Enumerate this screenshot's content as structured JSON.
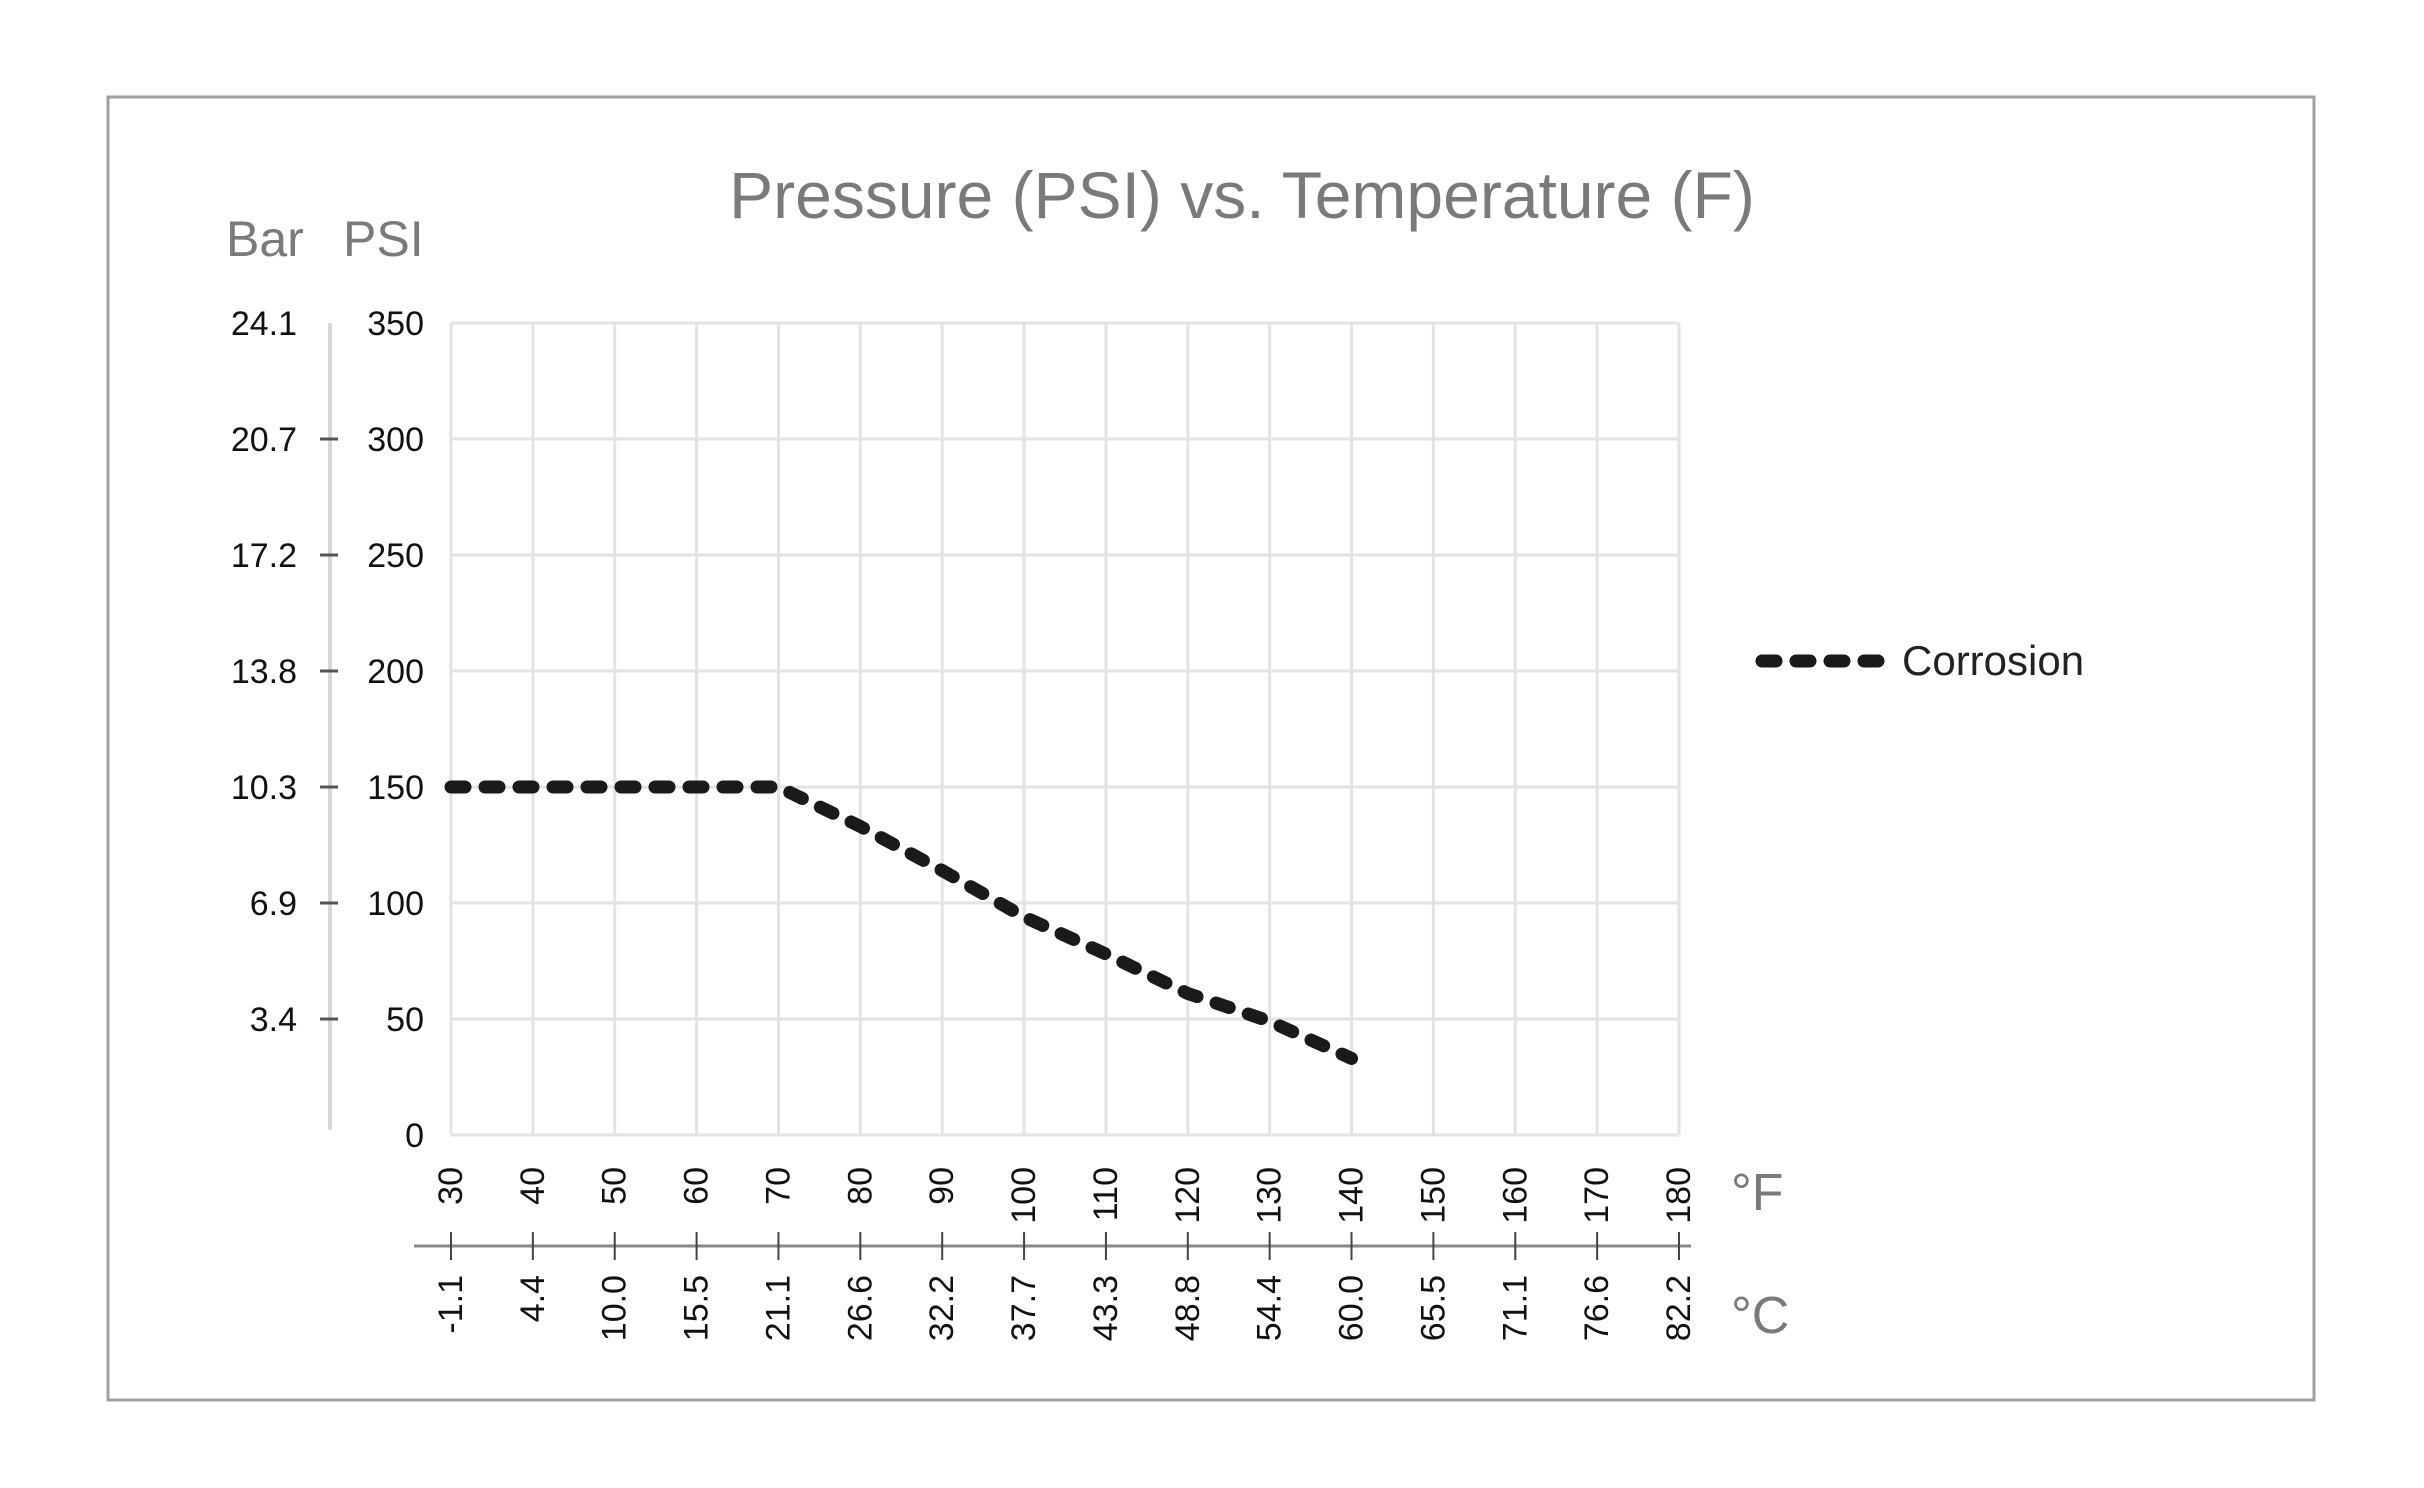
{
  "chart_data": {
    "type": "line",
    "title": "Pressure (PSI) vs. Temperature (F)",
    "y_left_label_bar": "Bar",
    "y_left_label_psi": "PSI",
    "x_unit_f": "°F",
    "x_unit_c": "°C",
    "x_ticks_f": [
      30,
      40,
      50,
      60,
      70,
      80,
      90,
      100,
      110,
      120,
      130,
      140,
      150,
      160,
      170,
      180
    ],
    "x_ticks_c": [
      "-1.1",
      "4.4",
      "10.0",
      "15.5",
      "21.1",
      "26.6",
      "32.2",
      "37.7",
      "43.3",
      "48.8",
      "54.4",
      "60.0",
      "65.5",
      "71.1",
      "76.6",
      "82.2"
    ],
    "y_ticks_psi": [
      0,
      50,
      100,
      150,
      200,
      250,
      300,
      350
    ],
    "y_ticks_bar": [
      "",
      "3.4",
      "6.9",
      "10.3",
      "13.8",
      "17.2",
      "20.7",
      "24.1"
    ],
    "xlim": [
      30,
      180
    ],
    "ylim": [
      0,
      350
    ],
    "grid": true,
    "legend_position": "right",
    "series": [
      {
        "name": "Corrosion",
        "color": "#1a1a1a",
        "style": "dashed",
        "x": [
          30,
          40,
          50,
          60,
          70,
          80,
          90,
          100,
          110,
          120,
          130,
          140
        ],
        "y": [
          150,
          150,
          150,
          150,
          150,
          133,
          114,
          94,
          78,
          61,
          49,
          33
        ]
      }
    ]
  }
}
